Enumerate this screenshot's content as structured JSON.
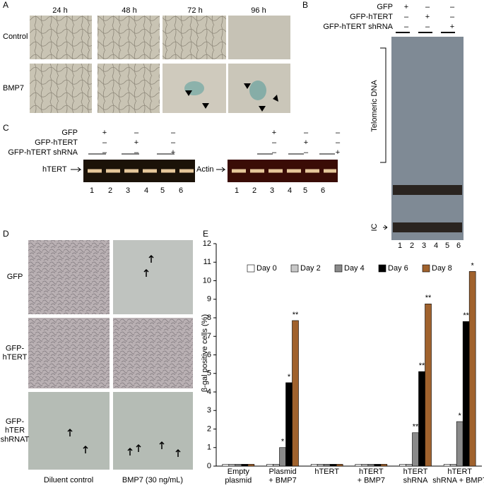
{
  "panel_a": {
    "letter": "A",
    "columns": [
      "24 h",
      "48 h",
      "72 h",
      "96 h"
    ],
    "rows": [
      "Control",
      "BMP7"
    ]
  },
  "panel_b": {
    "letter": "B",
    "rows": [
      "GFP",
      "GFP-hTERT",
      "GFP-hTERT shRNA"
    ],
    "signs": [
      [
        "+",
        "–",
        "–"
      ],
      [
        "–",
        "+",
        "–"
      ],
      [
        "–",
        "–",
        "+"
      ]
    ],
    "telomeric_label": "Telomeric DNA",
    "ic_label": "IC",
    "lanes": [
      1,
      2,
      3,
      4,
      5,
      6
    ]
  },
  "panel_c": {
    "letter": "C",
    "rows": [
      "GFP",
      "GFP-hTERT",
      "GFP-hTERT shRNA"
    ],
    "signs": [
      [
        "+",
        "–",
        "–"
      ],
      [
        "–",
        "+",
        "–"
      ],
      [
        "–",
        "–",
        "+"
      ]
    ],
    "gels": [
      "hTERT",
      "Actin"
    ],
    "lanes": [
      1,
      2,
      3,
      4,
      5,
      6
    ]
  },
  "panel_d": {
    "letter": "D",
    "rows": [
      "GFP",
      "GFP-\nhTERT",
      "GFP-\nhTER\nshRNAT"
    ],
    "columns": [
      "Diluent control",
      "BMP7 (30 ng/mL)"
    ]
  },
  "panel_e": {
    "letter": "E"
  },
  "chart_data": {
    "type": "bar",
    "y_label": "β-gal positive cells (%)",
    "categories": [
      "Empty\nplasmid",
      "Plasmid\n+ BMP7",
      "hTERT",
      "hTERT\n+ BMP7",
      "hTERT\nshRNA",
      "hTERT\nshRNA + BMP7"
    ],
    "series": [
      {
        "name": "Day 0",
        "color": "#ffffff",
        "values": [
          0.1,
          0.1,
          0.1,
          0.1,
          0.1,
          0.1
        ]
      },
      {
        "name": "Day 2",
        "color": "#c8c8c8",
        "values": [
          0.1,
          0.1,
          0.1,
          0.1,
          0.1,
          0.1
        ]
      },
      {
        "name": "Day 4",
        "color": "#8a8a8a",
        "values": [
          0.1,
          1.0,
          0.1,
          0.1,
          1.8,
          2.4
        ],
        "marks": [
          null,
          "*",
          null,
          null,
          "**",
          "*"
        ]
      },
      {
        "name": "Day 6",
        "color": "#000000",
        "values": [
          0.1,
          4.5,
          0.1,
          0.1,
          5.1,
          7.8
        ],
        "marks": [
          null,
          "*",
          null,
          null,
          "**",
          "**"
        ]
      },
      {
        "name": "Day 8",
        "color": "#a0622d",
        "values": [
          0.1,
          7.85,
          0.1,
          0.1,
          8.75,
          10.5
        ],
        "marks": [
          null,
          "**",
          null,
          null,
          "**",
          "*"
        ]
      }
    ],
    "ylim": [
      0,
      12
    ],
    "yticks": [
      0,
      1,
      2,
      3,
      4,
      5,
      6,
      7,
      8,
      9,
      10,
      11,
      12
    ],
    "legend": "top"
  }
}
